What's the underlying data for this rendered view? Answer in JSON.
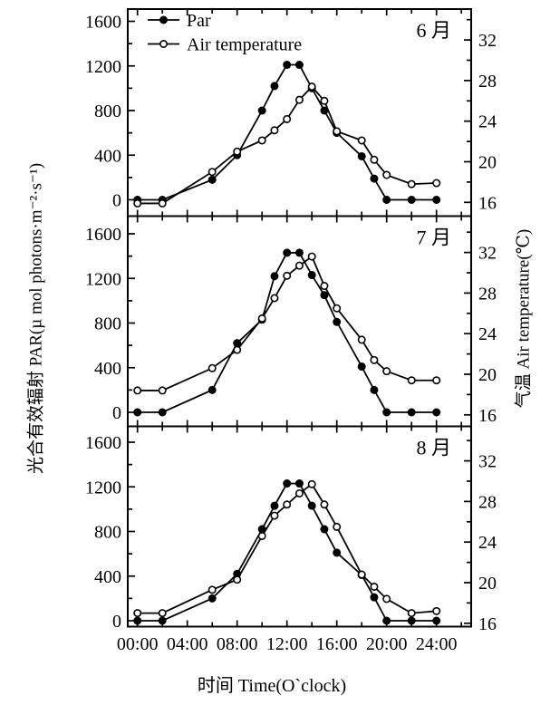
{
  "labels": {
    "y_left": "光合有效辐射 PAR(µ mol photons·m⁻²·s⁻¹)",
    "y_right": "气温 Air temperature(℃)",
    "x": "时间 Time(O`clock)"
  },
  "legend": [
    {
      "label": "Par",
      "marker": "filled-circle"
    },
    {
      "label": "Air temperature",
      "marker": "open-circle"
    }
  ],
  "colors": {
    "ink": "#000000",
    "background": "#ffffff"
  },
  "x_axis": {
    "tick_labels": [
      "00:00",
      "04:00",
      "08:00",
      "12:00",
      "16:00",
      "20:00",
      "24:00"
    ],
    "tick_hours": [
      0,
      4,
      8,
      12,
      16,
      20,
      24
    ]
  },
  "chart_data": [
    {
      "type": "line",
      "panel_label": "6 月",
      "x_hours": [
        0,
        2,
        6,
        8,
        10,
        11,
        12,
        13,
        14,
        15,
        16,
        18,
        19,
        20,
        22,
        24
      ],
      "ylim_left": [
        0,
        1600
      ],
      "ylim_right": [
        16,
        32
      ],
      "yticks_left": [
        0,
        400,
        800,
        1200,
        1600
      ],
      "yticks_right": [
        16,
        20,
        24,
        28,
        32
      ],
      "series": [
        {
          "name": "Par",
          "axis": "left",
          "marker": "filled-circle",
          "values": [
            0,
            0,
            180,
            400,
            800,
            1020,
            1210,
            1210,
            1000,
            800,
            600,
            390,
            190,
            0,
            0,
            0
          ]
        },
        {
          "name": "Air temperature",
          "axis": "right",
          "marker": "open-circle",
          "values": [
            15.9,
            15.9,
            19.0,
            21.0,
            22.1,
            23.1,
            24.2,
            26.1,
            27.4,
            26.0,
            23.0,
            22.1,
            20.2,
            18.7,
            17.8,
            17.9
          ]
        }
      ]
    },
    {
      "type": "line",
      "panel_label": "7 月",
      "x_hours": [
        0,
        2,
        6,
        8,
        10,
        11,
        12,
        13,
        14,
        15,
        16,
        18,
        19,
        20,
        22,
        24
      ],
      "ylim_left": [
        0,
        1600
      ],
      "ylim_right": [
        16,
        32
      ],
      "yticks_left": [
        0,
        400,
        800,
        1200,
        1600
      ],
      "yticks_right": [
        16,
        20,
        24,
        28,
        32
      ],
      "series": [
        {
          "name": "Par",
          "axis": "left",
          "marker": "filled-circle",
          "values": [
            0,
            0,
            200,
            620,
            830,
            1220,
            1430,
            1430,
            1230,
            1050,
            810,
            410,
            200,
            0,
            0,
            0
          ]
        },
        {
          "name": "Air temperature",
          "axis": "right",
          "marker": "open-circle",
          "values": [
            18.4,
            18.4,
            20.6,
            22.4,
            25.5,
            27.5,
            29.7,
            30.7,
            31.6,
            28.7,
            26.5,
            23.4,
            21.4,
            20.3,
            19.4,
            19.4
          ]
        }
      ]
    },
    {
      "type": "line",
      "panel_label": "8 月",
      "x_hours": [
        0,
        2,
        6,
        8,
        10,
        11,
        12,
        13,
        14,
        15,
        16,
        18,
        19,
        20,
        22,
        24
      ],
      "ylim_left": [
        0,
        1600
      ],
      "ylim_right": [
        16,
        32
      ],
      "yticks_left": [
        0,
        400,
        800,
        1200,
        1600
      ],
      "yticks_right": [
        16,
        20,
        24,
        28,
        32
      ],
      "series": [
        {
          "name": "Par",
          "axis": "left",
          "marker": "filled-circle",
          "values": [
            0,
            0,
            200,
            420,
            820,
            1030,
            1230,
            1230,
            1030,
            820,
            610,
            410,
            210,
            0,
            0,
            0
          ]
        },
        {
          "name": "Air temperature",
          "axis": "right",
          "marker": "open-circle",
          "values": [
            17.0,
            17.0,
            19.3,
            20.3,
            24.6,
            26.6,
            27.7,
            28.8,
            29.7,
            27.7,
            25.5,
            20.8,
            19.6,
            18.4,
            17.0,
            17.2
          ]
        }
      ]
    }
  ]
}
